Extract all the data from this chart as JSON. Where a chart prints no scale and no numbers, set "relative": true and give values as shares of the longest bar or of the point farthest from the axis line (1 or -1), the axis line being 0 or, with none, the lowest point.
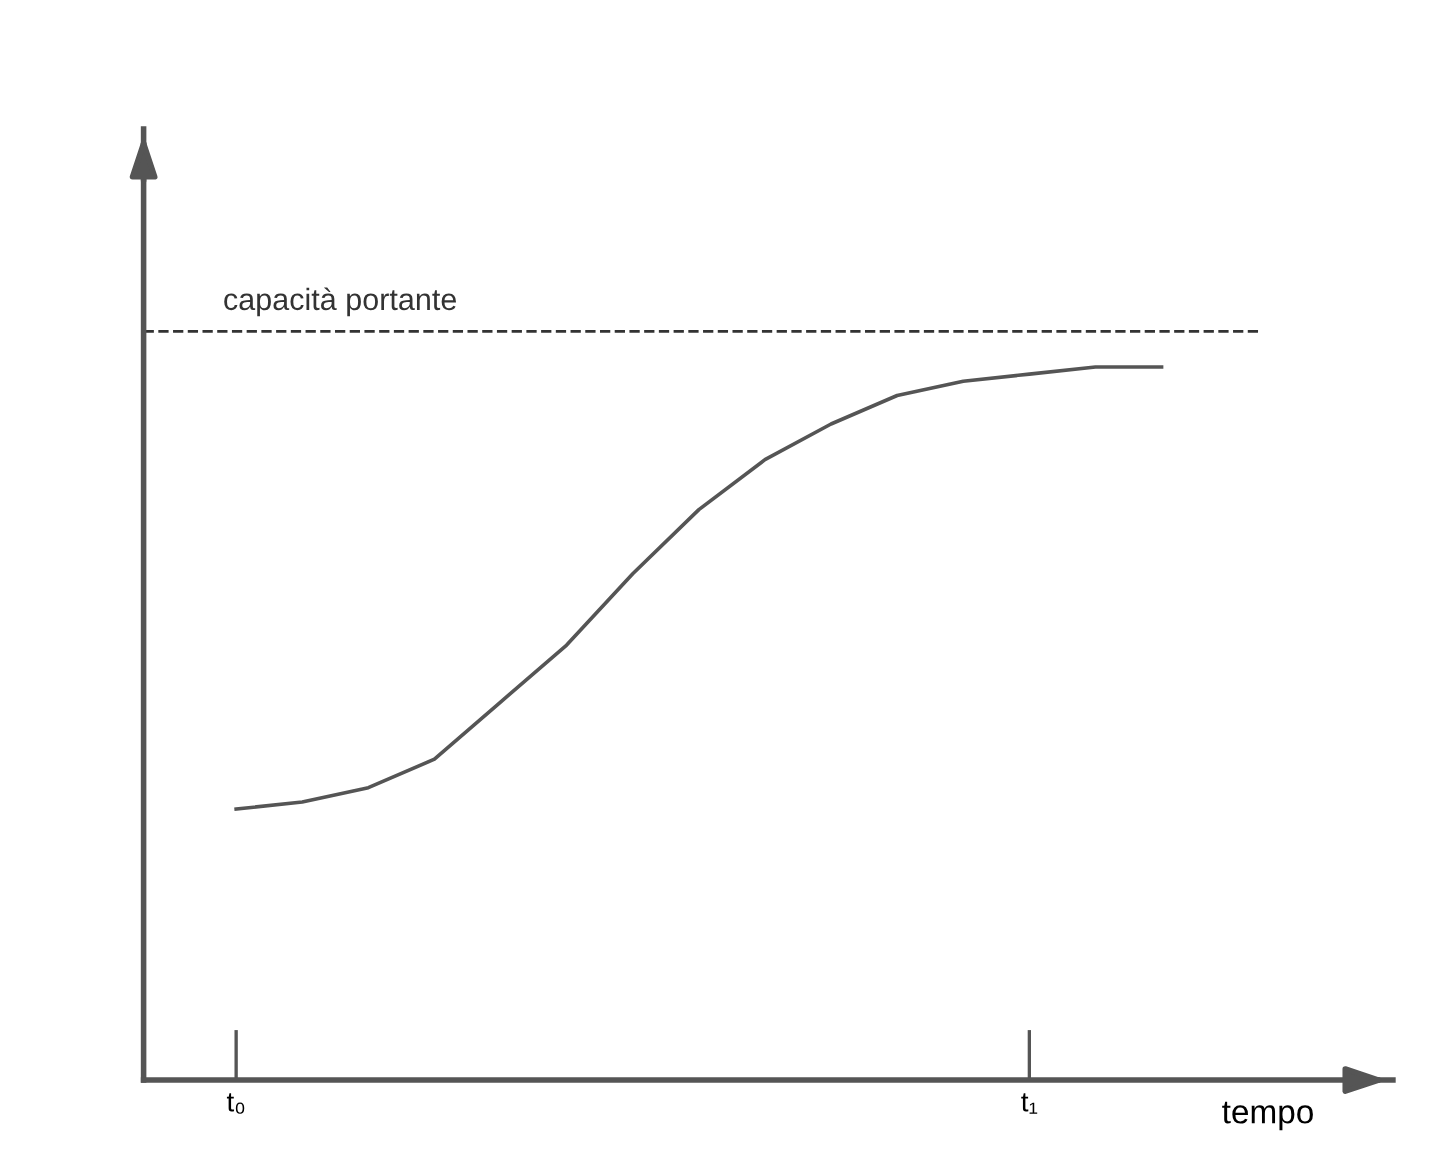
{
  "chart_data": {
    "type": "line",
    "relative": true,
    "xlabel": "tempo",
    "categories": [
      "t₀",
      null,
      null,
      null,
      null,
      null,
      null,
      null,
      null,
      null,
      null,
      null,
      "t₁",
      null,
      null
    ],
    "series": [
      {
        "color": "#555555",
        "values": [
          0.38,
          0.39,
          0.41,
          0.45,
          0.53,
          0.61,
          0.71,
          0.8,
          0.87,
          0.92,
          0.96,
          0.98,
          0.99,
          1.0,
          1.0
        ]
      }
    ],
    "ref_lines": [
      {
        "axis": "y",
        "value": 1.05,
        "label": "capacità portante",
        "color": "#333333",
        "line_style": "dashed"
      }
    ],
    "grid": false,
    "legend": false,
    "marker": "none",
    "line_style": "solid"
  }
}
